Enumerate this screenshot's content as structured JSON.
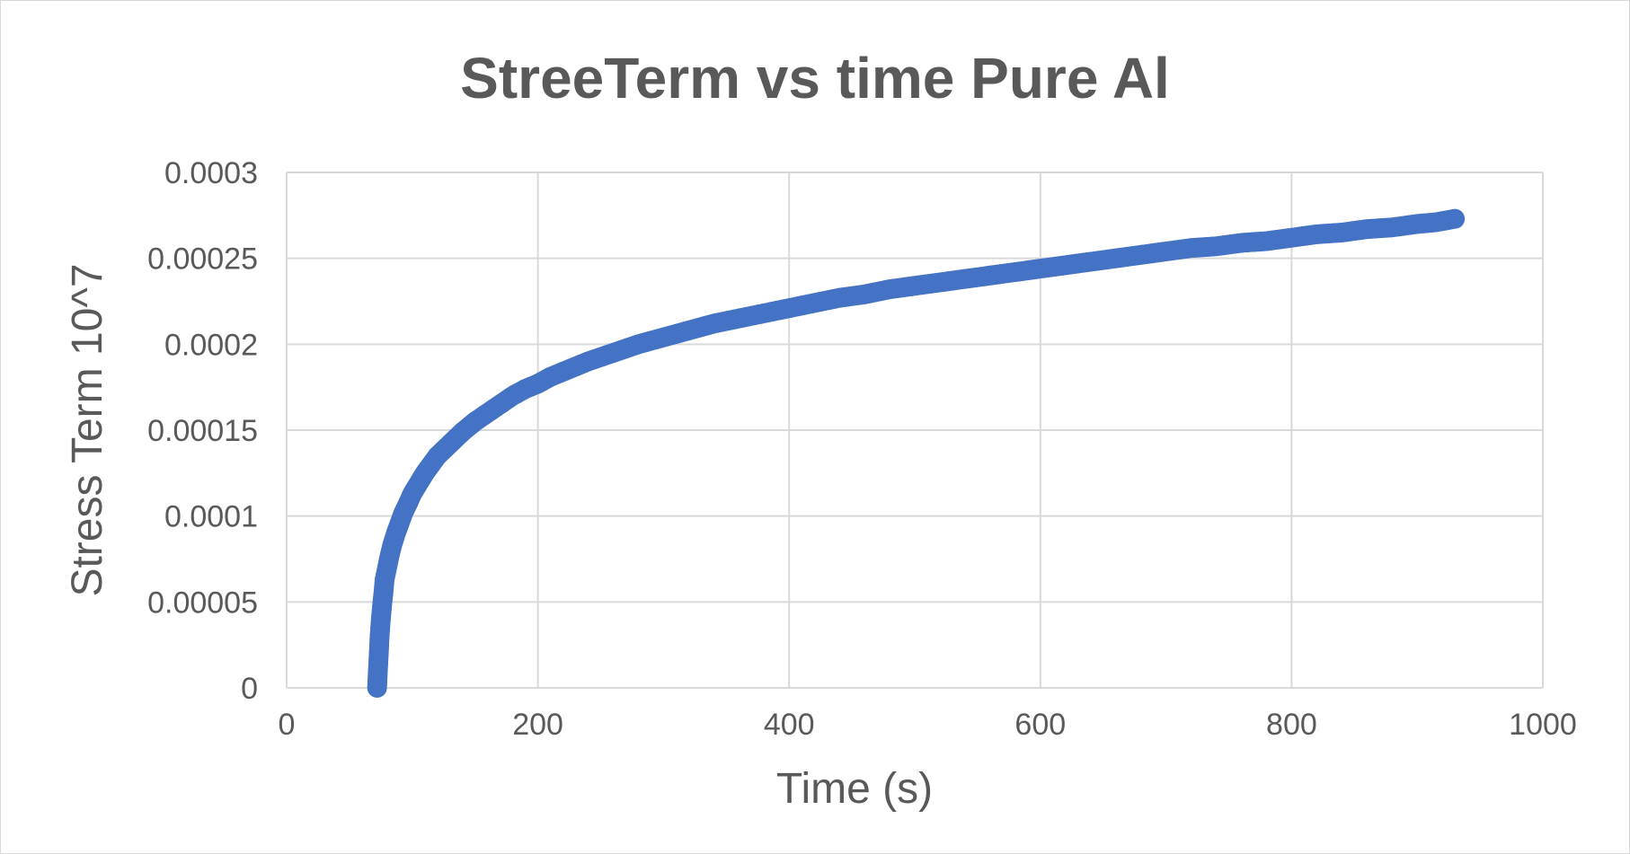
{
  "chart_data": {
    "type": "scatter",
    "title": "StreeTerm vs time Pure Al",
    "xlabel": "Time (s)",
    "ylabel": "Stress Term 10^7",
    "xlim": [
      0,
      1000
    ],
    "ylim": [
      0,
      0.0003
    ],
    "x_ticks": [
      0,
      200,
      400,
      600,
      800,
      1000
    ],
    "x_tick_labels": [
      "0",
      "200",
      "400",
      "600",
      "800",
      "1000"
    ],
    "y_ticks": [
      0,
      5e-05,
      0.0001,
      0.00015,
      0.0002,
      0.00025,
      0.0003
    ],
    "y_tick_labels": [
      "0",
      "0.00005",
      "0.0001",
      "0.00015",
      "0.0002",
      "0.00025",
      "0.0003"
    ],
    "grid": true,
    "legend": "none",
    "marker_color": "#4472c4",
    "series": [
      {
        "x": [
          72,
          72.5,
          73,
          73.5,
          74,
          75,
          76,
          77,
          78,
          80,
          82,
          84,
          87,
          90,
          93,
          97,
          100,
          105,
          110,
          115,
          120,
          130,
          140,
          150,
          160,
          170,
          180,
          190,
          200,
          210,
          220,
          240,
          260,
          280,
          300,
          320,
          340,
          360,
          380,
          400,
          420,
          440,
          460,
          480,
          500,
          520,
          540,
          560,
          580,
          600,
          620,
          640,
          660,
          680,
          700,
          720,
          740,
          760,
          780,
          800,
          820,
          840,
          860,
          880,
          900,
          915,
          930
        ],
        "y": [
          0,
          8e-06,
          1.5e-05,
          2.2e-05,
          3e-05,
          4e-05,
          4.8e-05,
          5.5e-05,
          6.3e-05,
          7e-05,
          7.7e-05,
          8.3e-05,
          9e-05,
          9.6e-05,
          0.000102,
          0.000108,
          0.000113,
          0.000119,
          0.000125,
          0.00013,
          0.000135,
          0.000142,
          0.000149,
          0.000155,
          0.00016,
          0.000165,
          0.00017,
          0.000174,
          0.000177,
          0.000181,
          0.000184,
          0.00019,
          0.000195,
          0.0002,
          0.000204,
          0.000208,
          0.000212,
          0.000215,
          0.000218,
          0.000221,
          0.000224,
          0.000227,
          0.000229,
          0.000232,
          0.000234,
          0.000236,
          0.000238,
          0.00024,
          0.000242,
          0.000244,
          0.000246,
          0.000248,
          0.00025,
          0.000252,
          0.000254,
          0.000256,
          0.000257,
          0.000259,
          0.00026,
          0.000262,
          0.000264,
          0.000265,
          0.000267,
          0.000268,
          0.00027,
          0.000271,
          0.000273
        ]
      }
    ]
  }
}
